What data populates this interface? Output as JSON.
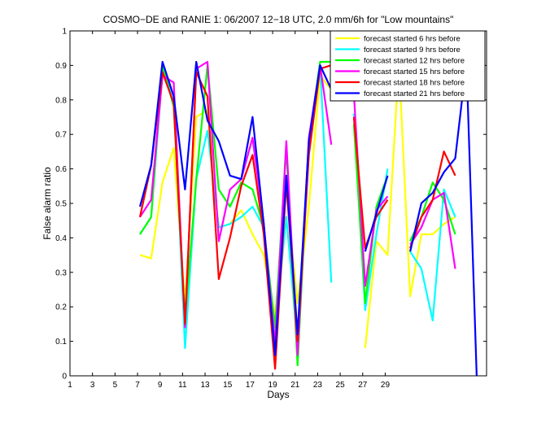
{
  "chart_data": {
    "type": "line",
    "title": "COSMO−DE and RANIE 1: 06/2007 12−18 UTC, 2.0 mm/6h for \"Low mountains\"",
    "xlabel": "Days",
    "ylabel": "False alarm ratio",
    "xlim": [
      1,
      38
    ],
    "ylim": [
      0,
      1
    ],
    "xticks": [
      1,
      3,
      5,
      7,
      9,
      11,
      13,
      15,
      17,
      19,
      21,
      23,
      25,
      27,
      29
    ],
    "yticks": [
      0,
      0.1,
      0.2,
      0.3,
      0.4,
      0.5,
      0.6,
      0.7,
      0.8,
      0.9,
      1
    ],
    "ytick_labels": [
      "0",
      "0.1",
      "0.2",
      "0.3",
      "0.4",
      "0.5",
      "0.6",
      "0.7",
      "0.8",
      "0.9",
      "1"
    ],
    "grid": false,
    "legend_position": "top-right",
    "series": [
      {
        "name": "forecast started 6 hrs before",
        "color": "#ffff00",
        "values": [
          0.44,
          0.43,
          0.65,
          0.75,
          0.3,
          0.84,
          0.86,
          0.52,
          0.53,
          0.57,
          0.5,
          0.44,
          0.26,
          0.63,
          0.3,
          0.58,
          0.96,
          0.92,
          null,
          null,
          0.17,
          0.48,
          0.44,
          1.0,
          0.32,
          0.5,
          0.5,
          0.53,
          0.55,
          null,
          null
        ]
      },
      {
        "name": "forecast started 9 hrs before",
        "color": "#00ffff",
        "values": [
          0.5,
          0.55,
          0.97,
          0.9,
          0.17,
          0.66,
          0.8,
          0.52,
          0.53,
          0.55,
          0.58,
          0.52,
          0.22,
          0.55,
          0.18,
          0.76,
          0.99,
          0.36,
          null,
          0.85,
          0.28,
          0.5,
          0.69,
          null,
          0.45,
          0.4,
          0.25,
          0.63,
          0.55,
          null,
          null
        ]
      },
      {
        "name": "forecast started 12 hrs before",
        "color": "#00ff00",
        "values": [
          0.5,
          0.55,
          0.99,
          0.87,
          0.25,
          0.66,
          0.99,
          0.63,
          0.58,
          0.65,
          0.63,
          0.52,
          0.23,
          0.75,
          0.12,
          0.77,
          1.0,
          1.0,
          null,
          0.82,
          0.3,
          0.58,
          0.67,
          null,
          0.48,
          0.55,
          0.65,
          0.6,
          0.5,
          null,
          null
        ]
      },
      {
        "name": "forecast started 15 hrs before",
        "color": "#ff00ff",
        "values": [
          0.55,
          0.6,
          0.96,
          0.94,
          0.23,
          0.98,
          1.0,
          0.48,
          0.63,
          0.66,
          0.78,
          0.53,
          0.18,
          0.77,
          0.15,
          0.78,
          0.99,
          0.76,
          null,
          0.91,
          0.35,
          0.57,
          0.61,
          null,
          0.47,
          0.52,
          0.6,
          0.62,
          0.4,
          null,
          null
        ]
      },
      {
        "name": "forecast started 18 hrs before",
        "color": "#ff0000",
        "values": [
          0.55,
          0.7,
          0.97,
          0.88,
          0.24,
          0.97,
          0.9,
          0.37,
          0.49,
          0.64,
          0.73,
          0.5,
          0.11,
          0.65,
          0.19,
          0.73,
          0.98,
          0.99,
          null,
          0.84,
          0.46,
          0.55,
          0.6,
          null,
          0.46,
          0.55,
          0.6,
          0.74,
          0.67,
          null,
          null
        ]
      },
      {
        "name": "forecast started 21 hrs before",
        "color": "#0000ff",
        "values": [
          0.58,
          0.7,
          1.0,
          0.9,
          0.63,
          1.0,
          0.83,
          0.77,
          0.67,
          0.66,
          0.84,
          0.53,
          0.15,
          0.67,
          0.21,
          0.77,
          0.99,
          0.92,
          null,
          null,
          0.45,
          0.56,
          0.67,
          null,
          0.45,
          0.59,
          0.62,
          0.68,
          0.72,
          1.0,
          0.0
        ]
      }
    ]
  }
}
